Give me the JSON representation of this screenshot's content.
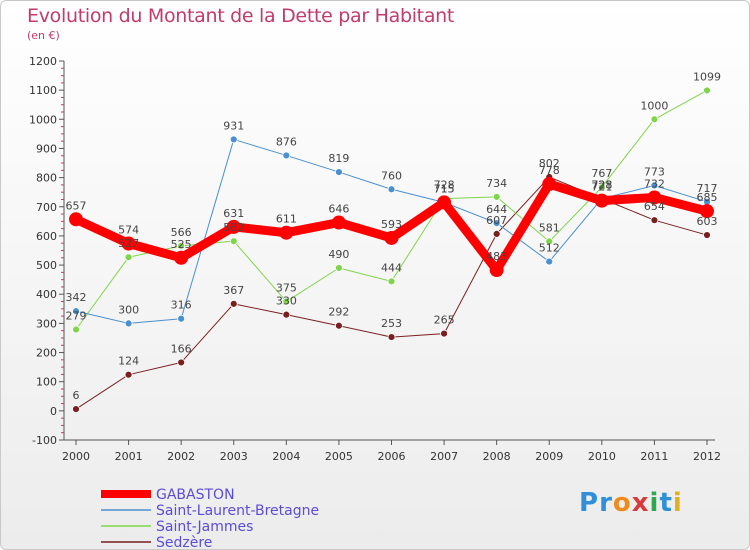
{
  "title": "Evolution du Montant de la Dette par Habitant",
  "subtitle": "(en €)",
  "logo": {
    "letters": [
      "P",
      "r",
      "o",
      "x",
      "i",
      "t",
      "i"
    ],
    "colors": [
      "#2f8fd8",
      "#2f8fd8",
      "#f08a1c",
      "#d83a3a",
      "#2fa84f",
      "#2f8fd8",
      "#e0b020"
    ]
  },
  "chart_data": {
    "type": "line",
    "title": "Evolution du Montant de la Dette par Habitant",
    "subtitle": "(en €)",
    "x": [
      "2000",
      "2001",
      "2002",
      "2003",
      "2004",
      "2005",
      "2006",
      "2007",
      "2008",
      "2009",
      "2010",
      "2011",
      "2012"
    ],
    "y_ticks": [
      "-100",
      "0",
      "100",
      "200",
      "300",
      "400",
      "500",
      "600",
      "700",
      "800",
      "900",
      "1000",
      "1100",
      "1200"
    ],
    "ylim": [
      -100,
      1200
    ],
    "grid": false,
    "legend_position": "bottom-left",
    "series": [
      {
        "name": "GABASTON",
        "color": "#ff0000",
        "width": 9,
        "marker": 7,
        "values": [
          657,
          574,
          525,
          631,
          611,
          646,
          593,
          715,
          483,
          778,
          721,
          732,
          685
        ],
        "labels": [
          "657",
          "574",
          "525",
          "631",
          "611",
          "646",
          "593",
          "715",
          "483",
          "778",
          "721",
          "732",
          "685"
        ]
      },
      {
        "name": "Saint-Laurent-Bretagne",
        "color": "#4a8fd0",
        "width": 1,
        "marker": 3.5,
        "values": [
          342,
          300,
          316,
          931,
          876,
          819,
          760,
          715,
          644,
          512,
          728,
          773,
          717
        ],
        "labels": [
          "342",
          "300",
          "316",
          "931",
          "876",
          "819",
          "760",
          "715",
          "644",
          "512",
          "728",
          "773",
          "717"
        ]
      },
      {
        "name": "Saint-Jammes",
        "color": "#7fd54a",
        "width": 1,
        "marker": 3.5,
        "values": [
          279,
          527,
          566,
          582,
          375,
          490,
          444,
          728,
          734,
          581,
          767,
          1000,
          1099
        ],
        "labels": [
          "279",
          "527",
          "566",
          "582",
          "375",
          "490",
          "444",
          "728",
          "734",
          "581",
          "767",
          "1000",
          "1099"
        ]
      },
      {
        "name": "Sedzère",
        "color": "#7a1f1f",
        "width": 1,
        "marker": 3.5,
        "values": [
          6,
          124,
          166,
          367,
          330,
          292,
          253,
          265,
          607,
          802,
          728,
          654,
          603
        ],
        "labels": [
          "6",
          "124",
          "166",
          "367",
          "330",
          "292",
          "253",
          "265",
          "607",
          "802",
          "728",
          "654",
          "603"
        ]
      }
    ],
    "legend": [
      {
        "label": "GABASTON",
        "color": "#ff0000",
        "text_color": "#5b4cd8",
        "thick": true
      },
      {
        "label": "Saint-Laurent-Bretagne",
        "color": "#4a8fd0",
        "text_color": "#5b4cd8",
        "thick": false
      },
      {
        "label": "Saint-Jammes",
        "color": "#7fd54a",
        "text_color": "#5b4cd8",
        "thick": false
      },
      {
        "label": "Sedzère",
        "color": "#7a1f1f",
        "text_color": "#5b4cd8",
        "thick": false
      }
    ]
  }
}
